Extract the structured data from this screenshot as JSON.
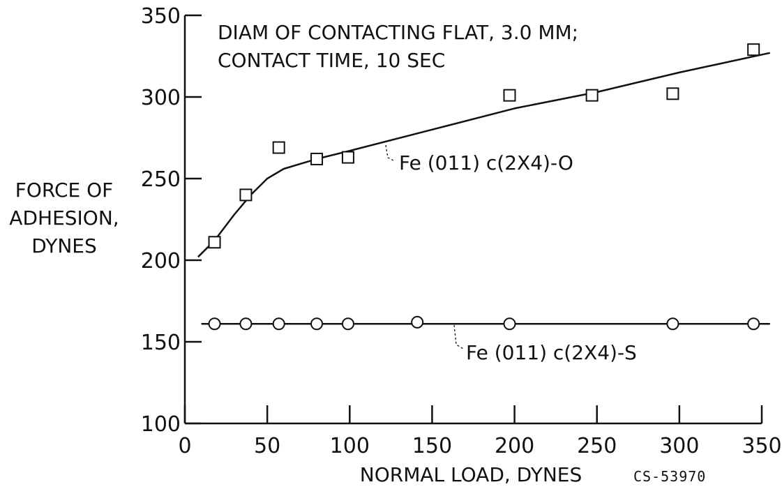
{
  "chart_data": {
    "type": "scatter",
    "annotation_lines": [
      "DIAM OF CONTACTING FLAT, 3.0 MM;",
      "CONTACT TIME, 10 SEC"
    ],
    "xlabel": "NORMAL LOAD, DYNES",
    "ylabel_lines": [
      "FORCE OF",
      "ADHESION,",
      "DYNES"
    ],
    "xlim": [
      0,
      350
    ],
    "ylim": [
      100,
      350
    ],
    "x_ticks": [
      0,
      50,
      100,
      150,
      200,
      250,
      300,
      350
    ],
    "y_ticks": [
      100,
      150,
      200,
      250,
      300,
      350
    ],
    "grid": false,
    "figure_id": "CS-53970",
    "series": [
      {
        "name": "Fe (011) c(2X4)-O",
        "marker": "square",
        "points": [
          [
            18,
            211
          ],
          [
            37,
            240
          ],
          [
            57,
            269
          ],
          [
            80,
            262
          ],
          [
            99,
            263
          ],
          [
            197,
            301
          ],
          [
            247,
            301
          ],
          [
            296,
            302
          ],
          [
            345,
            329
          ]
        ],
        "fit_curve": [
          [
            8,
            202
          ],
          [
            18,
            212
          ],
          [
            30,
            228
          ],
          [
            40,
            240
          ],
          [
            50,
            250
          ],
          [
            60,
            256
          ],
          [
            70,
            259
          ],
          [
            80,
            262
          ],
          [
            100,
            267
          ],
          [
            150,
            280
          ],
          [
            200,
            293
          ],
          [
            250,
            303
          ],
          [
            300,
            315
          ],
          [
            355,
            327
          ]
        ]
      },
      {
        "name": "Fe (011) c(2X4)-S",
        "marker": "circle",
        "points": [
          [
            18,
            161
          ],
          [
            37,
            161
          ],
          [
            57,
            161
          ],
          [
            80,
            161
          ],
          [
            99,
            161
          ],
          [
            141,
            162
          ],
          [
            197,
            161
          ],
          [
            296,
            161
          ],
          [
            345,
            161
          ]
        ],
        "fit_curve": [
          [
            10,
            161
          ],
          [
            355,
            161
          ]
        ]
      }
    ]
  }
}
